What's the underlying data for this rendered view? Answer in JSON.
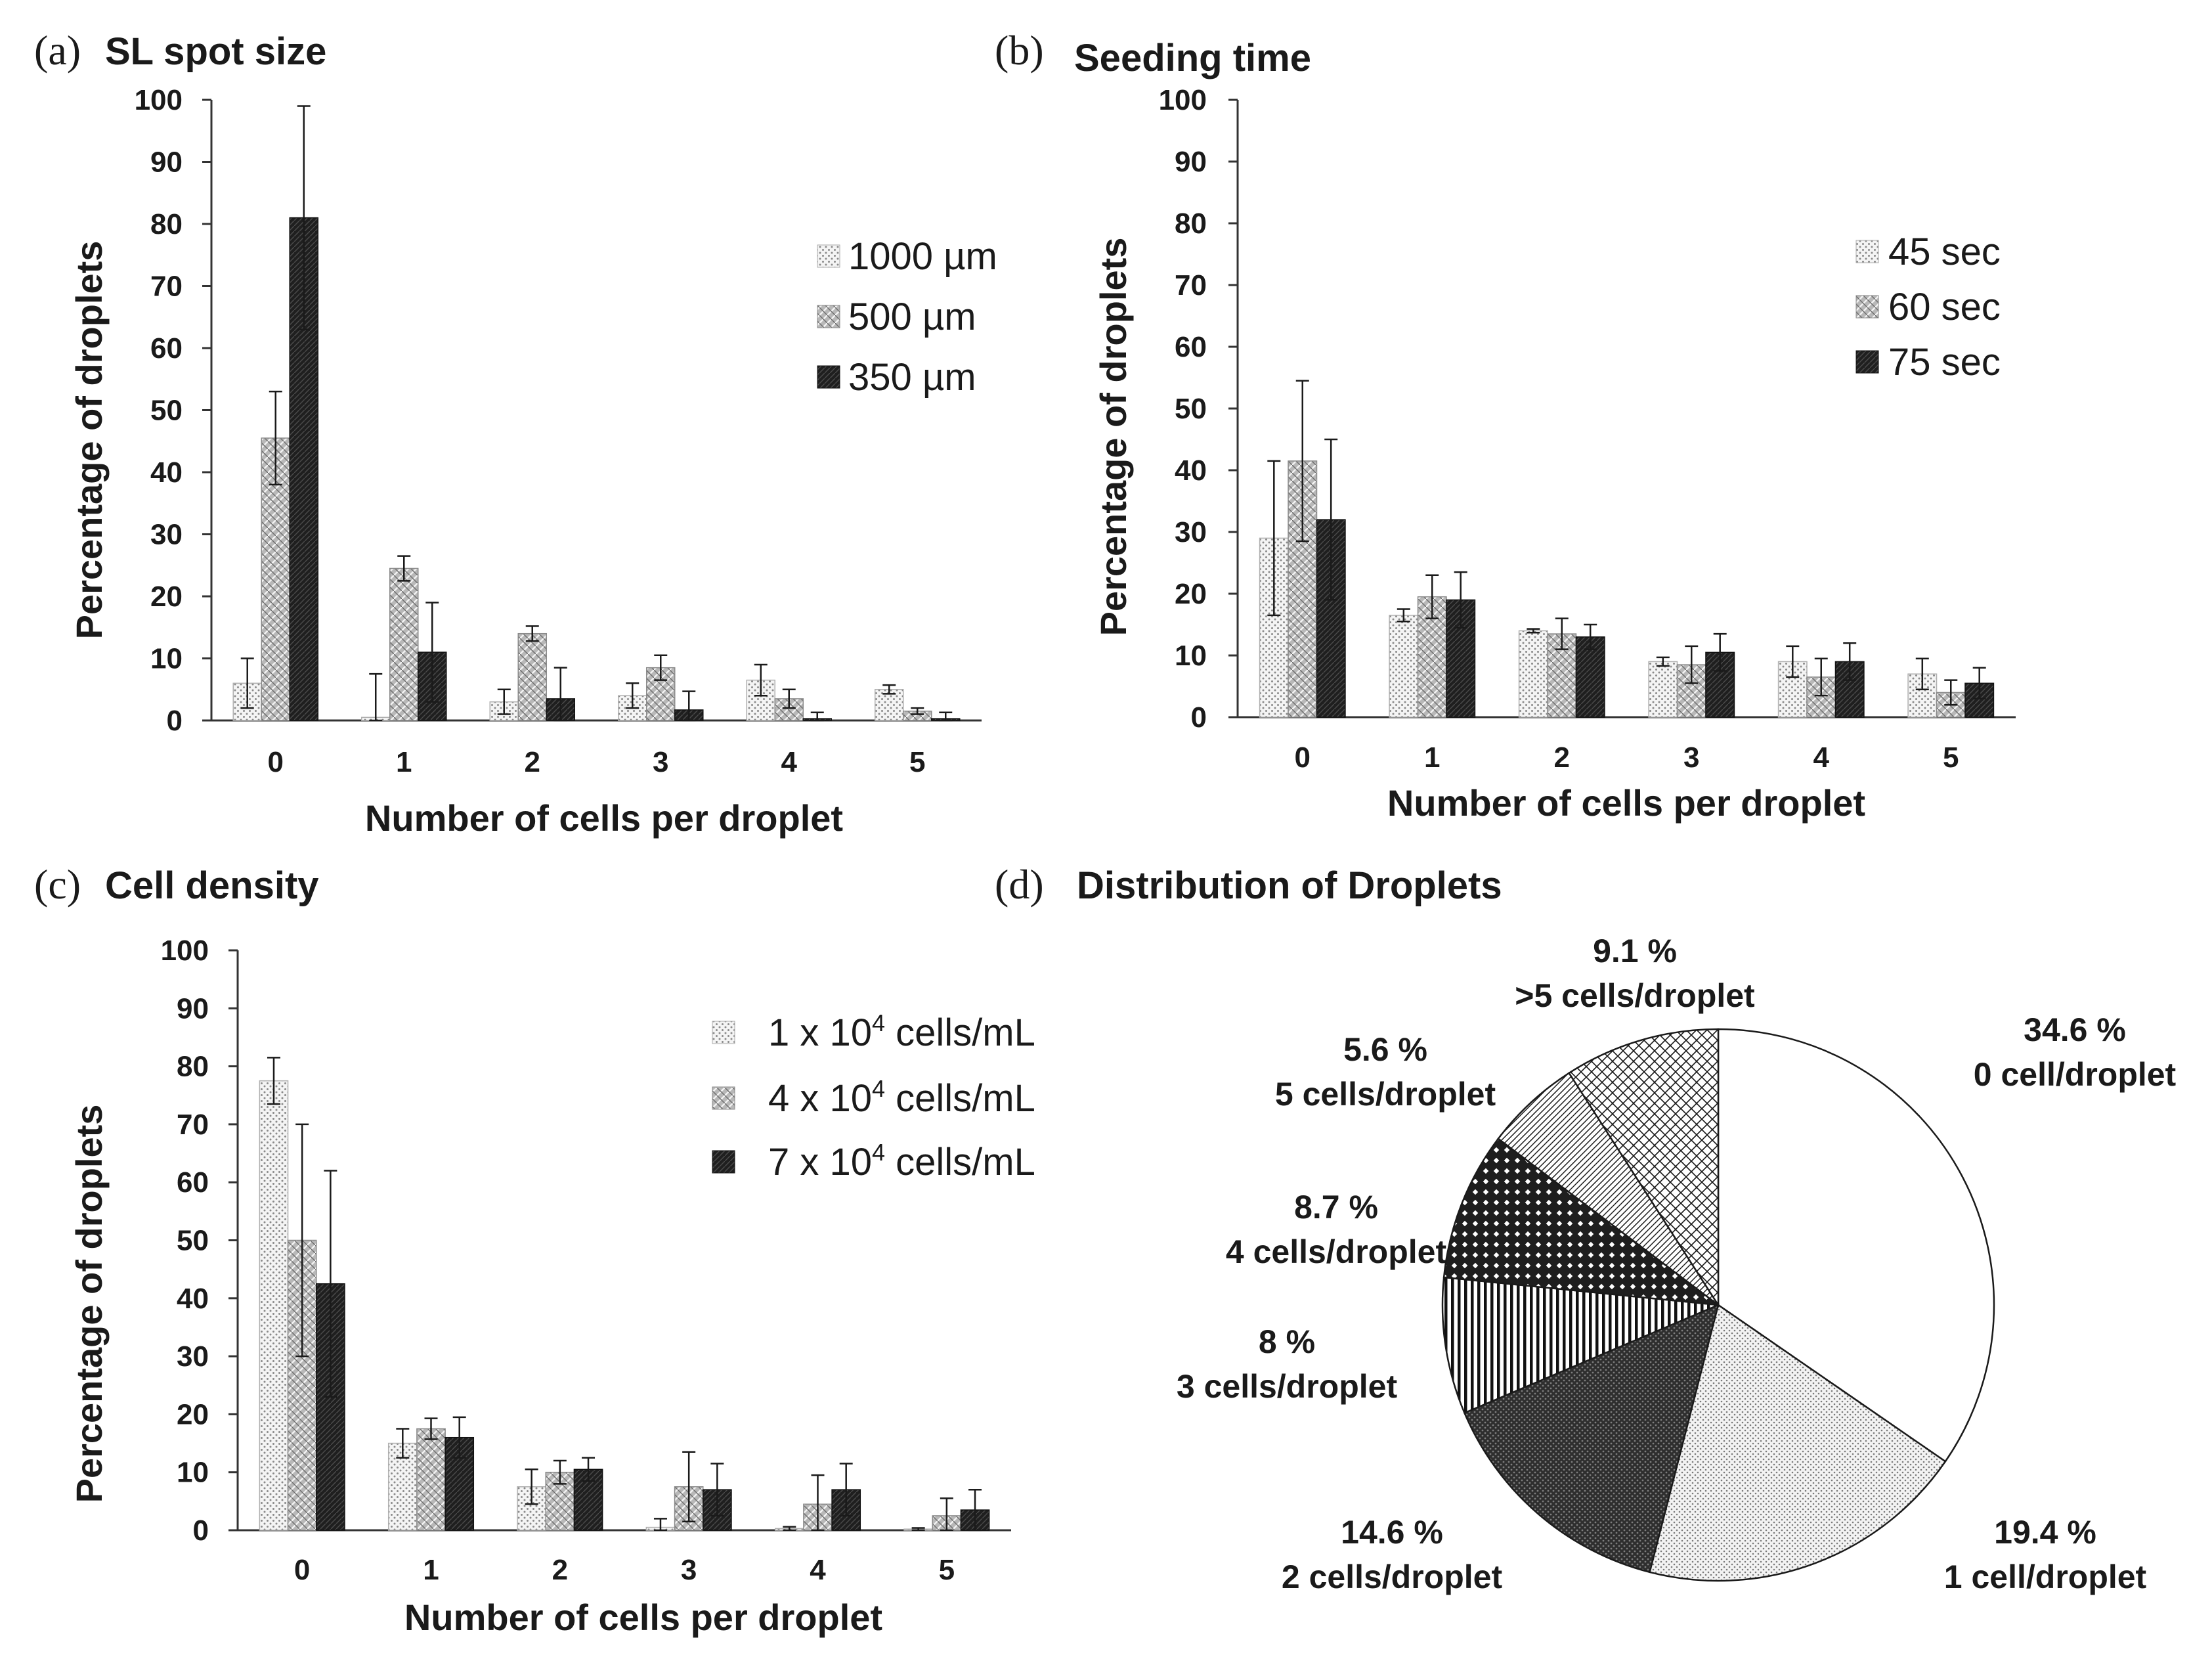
{
  "chart_data": [
    {
      "type": "bar",
      "panel": "(a)",
      "title": "SL spot size",
      "xlabel": "Number of cells per droplet",
      "ylabel": "Percentage of droplets",
      "ylim": [
        0,
        100
      ],
      "yticks": [
        "0",
        "10",
        "20",
        "30",
        "40",
        "50",
        "60",
        "70",
        "80",
        "90",
        "100"
      ],
      "categories": [
        "0",
        "1",
        "2",
        "3",
        "4",
        "5"
      ],
      "legend_position": "top-right",
      "series": [
        {
          "name": "1000 µm",
          "pattern": "dots",
          "values": [
            6,
            0.5,
            3,
            4,
            6.5,
            5
          ],
          "errors": [
            4,
            7,
            2,
            2,
            2.5,
            0.7
          ]
        },
        {
          "name": "500 µm",
          "pattern": "hatch",
          "values": [
            45.5,
            24.5,
            14,
            8.5,
            3.5,
            1.5
          ],
          "errors": [
            7.5,
            2,
            1.2,
            2,
            1.5,
            0.5
          ]
        },
        {
          "name": "350 µm",
          "pattern": "dark",
          "values": [
            81,
            11,
            3.5,
            1.7,
            0.3,
            0.3
          ],
          "errors": [
            18,
            8,
            5,
            3,
            1,
            1
          ]
        }
      ]
    },
    {
      "type": "bar",
      "panel": "(b)",
      "title": "Seeding time",
      "xlabel": "Number of cells per droplet",
      "ylabel": "Percentage of droplets",
      "ylim": [
        0,
        100
      ],
      "yticks": [
        "0",
        "10",
        "20",
        "30",
        "40",
        "50",
        "60",
        "70",
        "80",
        "90",
        "100"
      ],
      "categories": [
        "0",
        "1",
        "2",
        "3",
        "4",
        "5"
      ],
      "legend_position": "top-right",
      "series": [
        {
          "name": "45 sec",
          "pattern": "dots",
          "values": [
            29,
            16.5,
            14,
            9,
            9,
            7
          ],
          "errors": [
            12.5,
            1,
            0.3,
            0.7,
            2.5,
            2.5
          ]
        },
        {
          "name": "60 sec",
          "pattern": "hatch",
          "values": [
            41.5,
            19.5,
            13.5,
            8.5,
            6.5,
            4
          ],
          "errors": [
            13,
            3.5,
            2.5,
            3,
            3,
            2
          ]
        },
        {
          "name": "75 sec",
          "pattern": "dark",
          "values": [
            32,
            19,
            13,
            10.5,
            9,
            5.5
          ],
          "errors": [
            13,
            4.5,
            2,
            3,
            3,
            2.5
          ]
        }
      ]
    },
    {
      "type": "bar",
      "panel": "(c)",
      "title": "Cell density",
      "xlabel": "Number of cells per droplet",
      "ylabel": "Percentage of droplets",
      "ylim": [
        0,
        100
      ],
      "yticks": [
        "0",
        "10",
        "20",
        "30",
        "40",
        "50",
        "60",
        "70",
        "80",
        "90",
        "100"
      ],
      "categories": [
        "0",
        "1",
        "2",
        "3",
        "4",
        "5"
      ],
      "legend_position": "top-right",
      "series": [
        {
          "name_prefix": "1 x 10",
          "name_sup": "4",
          "name_suffix": " cells/mL",
          "pattern": "dots",
          "values": [
            77.5,
            15,
            7.5,
            0.5,
            0.3,
            0.2
          ],
          "errors": [
            4,
            2.5,
            3,
            1.5,
            0.3,
            0.2
          ]
        },
        {
          "name_prefix": "4 x 10",
          "name_sup": "4",
          "name_suffix": " cells/mL",
          "pattern": "hatch",
          "values": [
            50,
            17.5,
            10,
            7.5,
            4.5,
            2.5
          ],
          "errors": [
            20,
            1.8,
            2,
            6,
            5,
            3
          ]
        },
        {
          "name_prefix": "7 x 10",
          "name_sup": "4",
          "name_suffix": " cells/mL",
          "pattern": "dark",
          "values": [
            42.5,
            16,
            10.5,
            7,
            7,
            3.5
          ],
          "errors": [
            19.5,
            3.5,
            2,
            4.5,
            4.5,
            3.5
          ]
        }
      ]
    },
    {
      "type": "pie",
      "panel": "(d)",
      "title": "Distribution of Droplets",
      "slices": [
        {
          "value": 34.6,
          "label_pct": "34.6 %",
          "label_name": "0 cell/droplet"
        },
        {
          "value": 19.4,
          "label_pct": "19.4 %",
          "label_name": "1 cell/droplet"
        },
        {
          "value": 14.6,
          "label_pct": "14.6 %",
          "label_name": "2 cells/droplet"
        },
        {
          "value": 8,
          "label_pct": "8 %",
          "label_name": "3 cells/droplet"
        },
        {
          "value": 8.7,
          "label_pct": "8.7 %",
          "label_name": "4 cells/droplet"
        },
        {
          "value": 5.6,
          "label_pct": "5.6 %",
          "label_name": "5 cells/droplet"
        },
        {
          "value": 9.1,
          "label_pct": "9.1 %",
          "label_name": ">5 cells/droplet"
        }
      ]
    }
  ]
}
